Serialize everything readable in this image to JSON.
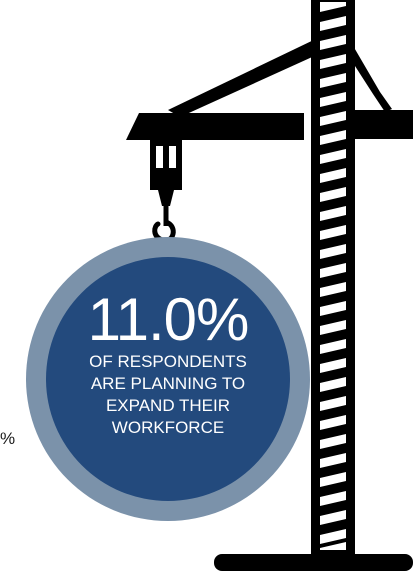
{
  "stat": {
    "value": "11.0%",
    "lines": [
      "OF RESPONDENTS",
      "ARE PLANNING TO",
      "EXPAND THEIR",
      "WORKFORCE"
    ]
  },
  "edge_fragment": "%",
  "colors": {
    "outer_ring": "#7b92aa",
    "inner_disc": "#234a7d",
    "crane": "#000000",
    "background": "#ffffff"
  },
  "icons": {
    "crane": "crane-icon",
    "hook": "crane-hook-icon"
  }
}
